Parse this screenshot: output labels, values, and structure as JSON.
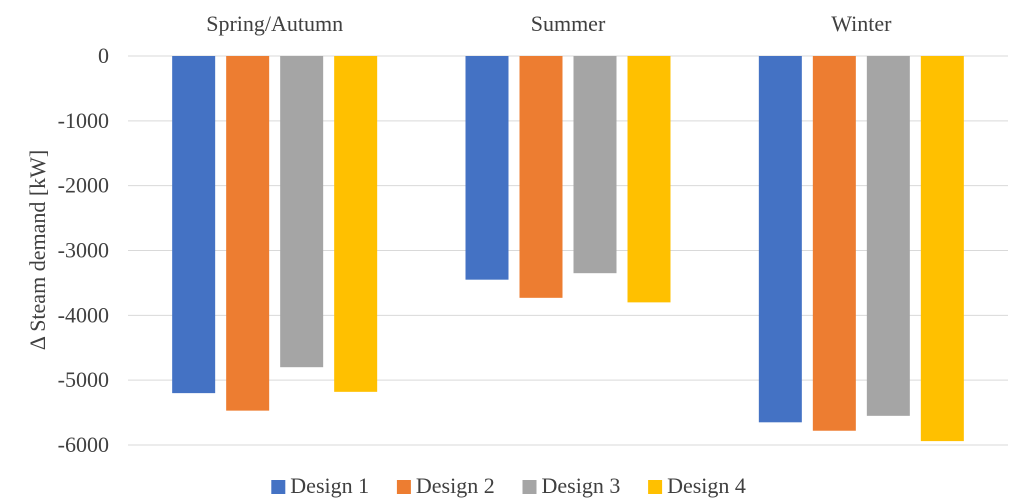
{
  "chart_data": {
    "type": "bar",
    "categories": [
      "Spring/Autumn",
      "Summer",
      "Winter"
    ],
    "ylabel": "Δ Steam demand [kW]",
    "xlabel": "",
    "ylim": [
      -6000,
      0
    ],
    "yticks": [
      0,
      -1000,
      -2000,
      -3000,
      -4000,
      -5000,
      -6000
    ],
    "grid": true,
    "legend_position": "bottom",
    "category_axis_position": "top",
    "series": [
      {
        "name": "Design 1",
        "color": "#4472C4",
        "values": [
          -5200,
          -3450,
          -5650
        ]
      },
      {
        "name": "Design 2",
        "color": "#ED7D31",
        "values": [
          -5470,
          -3730,
          -5780
        ]
      },
      {
        "name": "Design 3",
        "color": "#A5A5A5",
        "values": [
          -4800,
          -3350,
          -5550
        ]
      },
      {
        "name": "Design 4",
        "color": "#FFC000",
        "values": [
          -5180,
          -3800,
          -5940
        ]
      }
    ]
  }
}
